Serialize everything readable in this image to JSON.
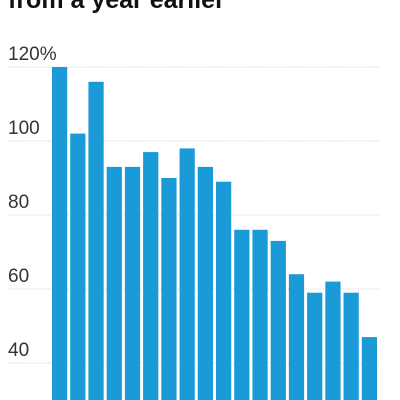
{
  "chart_data": {
    "type": "bar",
    "title": "from a year earlier",
    "xlabel": "",
    "ylabel": "",
    "y_ticks": [
      40,
      60,
      80,
      100,
      120
    ],
    "y_tick_labels": [
      "40",
      "60",
      "80",
      "100",
      "120%"
    ],
    "ylim": [
      30,
      122
    ],
    "grid": true,
    "bar_color": "#1a9ad6",
    "values": [
      120,
      102,
      116,
      93,
      93,
      97,
      90,
      98,
      93,
      89,
      76,
      76,
      73,
      64,
      59,
      62,
      59,
      47
    ]
  }
}
